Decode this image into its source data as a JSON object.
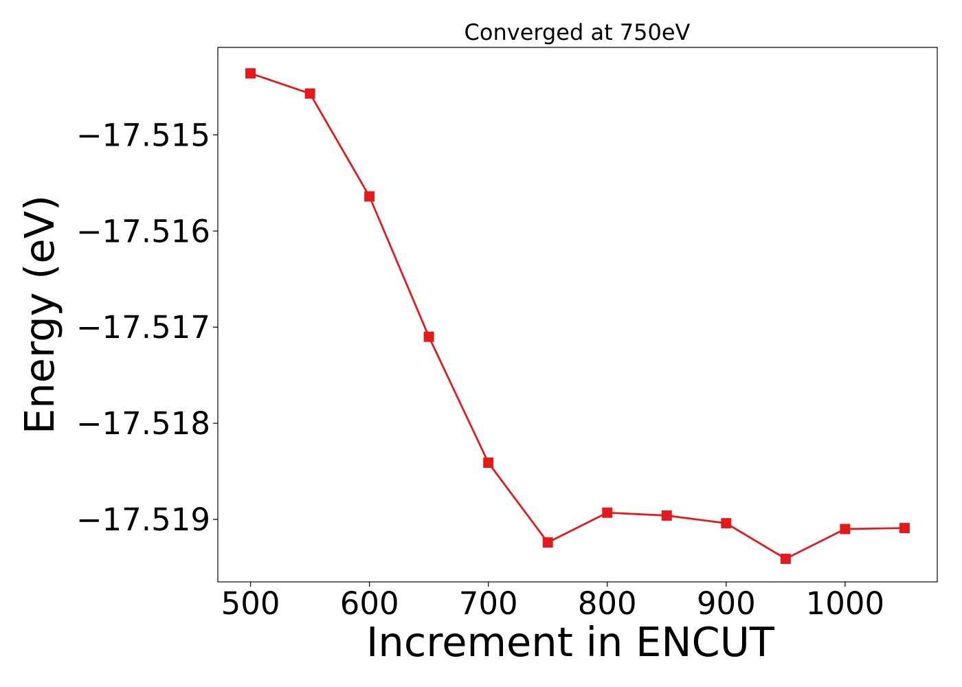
{
  "chart_data": {
    "type": "line",
    "title": "Converged at 750eV",
    "xlabel": "Increment in ENCUT",
    "ylabel": "Energy (eV)",
    "xlim": [
      472.5,
      1077.5
    ],
    "ylim": [
      -17.51965,
      -17.51409
    ],
    "x_ticks": [
      500,
      600,
      700,
      800,
      900,
      1000
    ],
    "x_tick_labels": [
      "500",
      "600",
      "700",
      "800",
      "900",
      "1000"
    ],
    "y_ticks": [
      -17.515,
      -17.516,
      -17.517,
      -17.518,
      -17.519
    ],
    "y_tick_labels": [
      "−17.515",
      "−17.516",
      "−17.517",
      "−17.518",
      "−17.519"
    ],
    "grid": false,
    "series": [
      {
        "color": "#e31a1c",
        "marker": "square",
        "x": [
          500,
          550,
          600,
          650,
          700,
          750,
          800,
          850,
          900,
          950,
          1000,
          1050
        ],
        "y": [
          -17.51436,
          -17.51457,
          -17.51564,
          -17.5171,
          -17.51841,
          -17.51924,
          -17.51893,
          -17.51896,
          -17.51904,
          -17.51941,
          -17.5191,
          -17.51909
        ]
      }
    ]
  }
}
